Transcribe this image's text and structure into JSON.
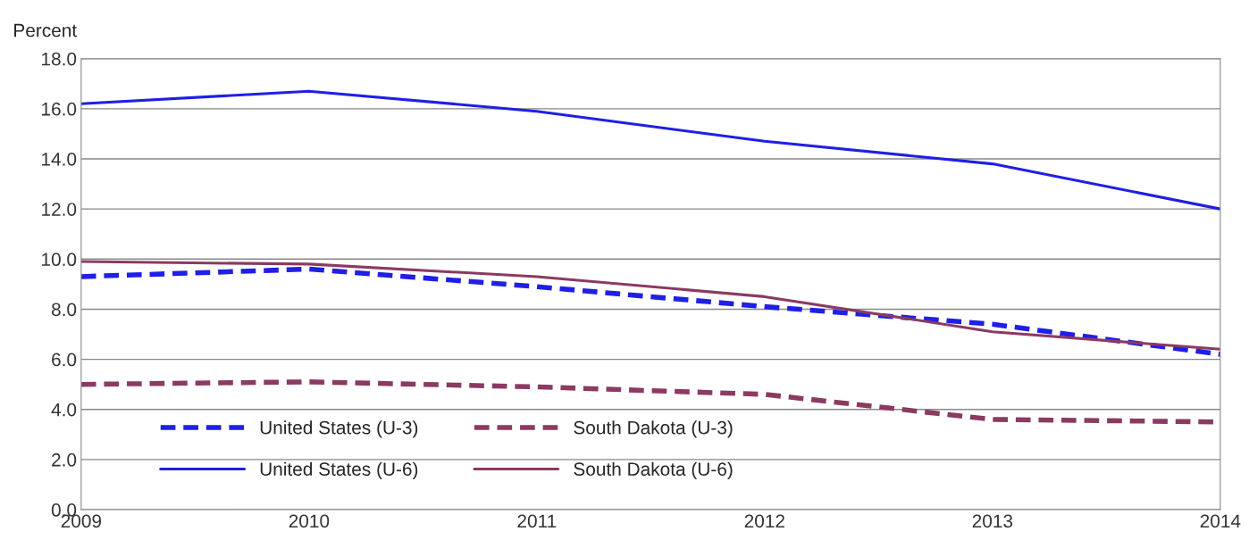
{
  "chart_data": {
    "type": "line",
    "ylabel": "Percent",
    "x": [
      2009,
      2010,
      2011,
      2012,
      2013,
      2014
    ],
    "series": [
      {
        "name": "United States (U-3)",
        "color": "#1f1fe6",
        "line_style": "dashed",
        "values": [
          9.3,
          9.6,
          8.9,
          8.1,
          7.4,
          6.2
        ]
      },
      {
        "name": "United States (U-6)",
        "color": "#1f1fe6",
        "line_style": "solid",
        "values": [
          16.2,
          16.7,
          15.9,
          14.7,
          13.8,
          12.0
        ]
      },
      {
        "name": "South Dakota (U-3)",
        "color": "#8b3a62",
        "line_style": "dashed",
        "values": [
          5.0,
          5.1,
          4.9,
          4.6,
          3.6,
          3.5
        ]
      },
      {
        "name": "South Dakota (U-6)",
        "color": "#8b3a62",
        "line_style": "solid",
        "values": [
          9.9,
          9.8,
          9.3,
          8.5,
          7.1,
          6.4
        ]
      }
    ],
    "xlim": [
      2009,
      2014
    ],
    "xticks": [
      2009,
      2010,
      2011,
      2012,
      2013,
      2014
    ],
    "ylim": [
      0,
      18
    ],
    "yticks": [
      {
        "value": 0,
        "label": "0.0"
      },
      {
        "value": 2,
        "label": "2.0"
      },
      {
        "value": 4,
        "label": "4.0"
      },
      {
        "value": 6,
        "label": "6.0"
      },
      {
        "value": 8,
        "label": "8.0"
      },
      {
        "value": 10,
        "label": "10.0"
      },
      {
        "value": 12,
        "label": "12.0"
      },
      {
        "value": 14,
        "label": "14.0"
      },
      {
        "value": 16,
        "label": "16.0"
      },
      {
        "value": 18,
        "label": "18.0"
      }
    ],
    "grid": "y",
    "legend": "bottom left",
    "marker": "none"
  }
}
